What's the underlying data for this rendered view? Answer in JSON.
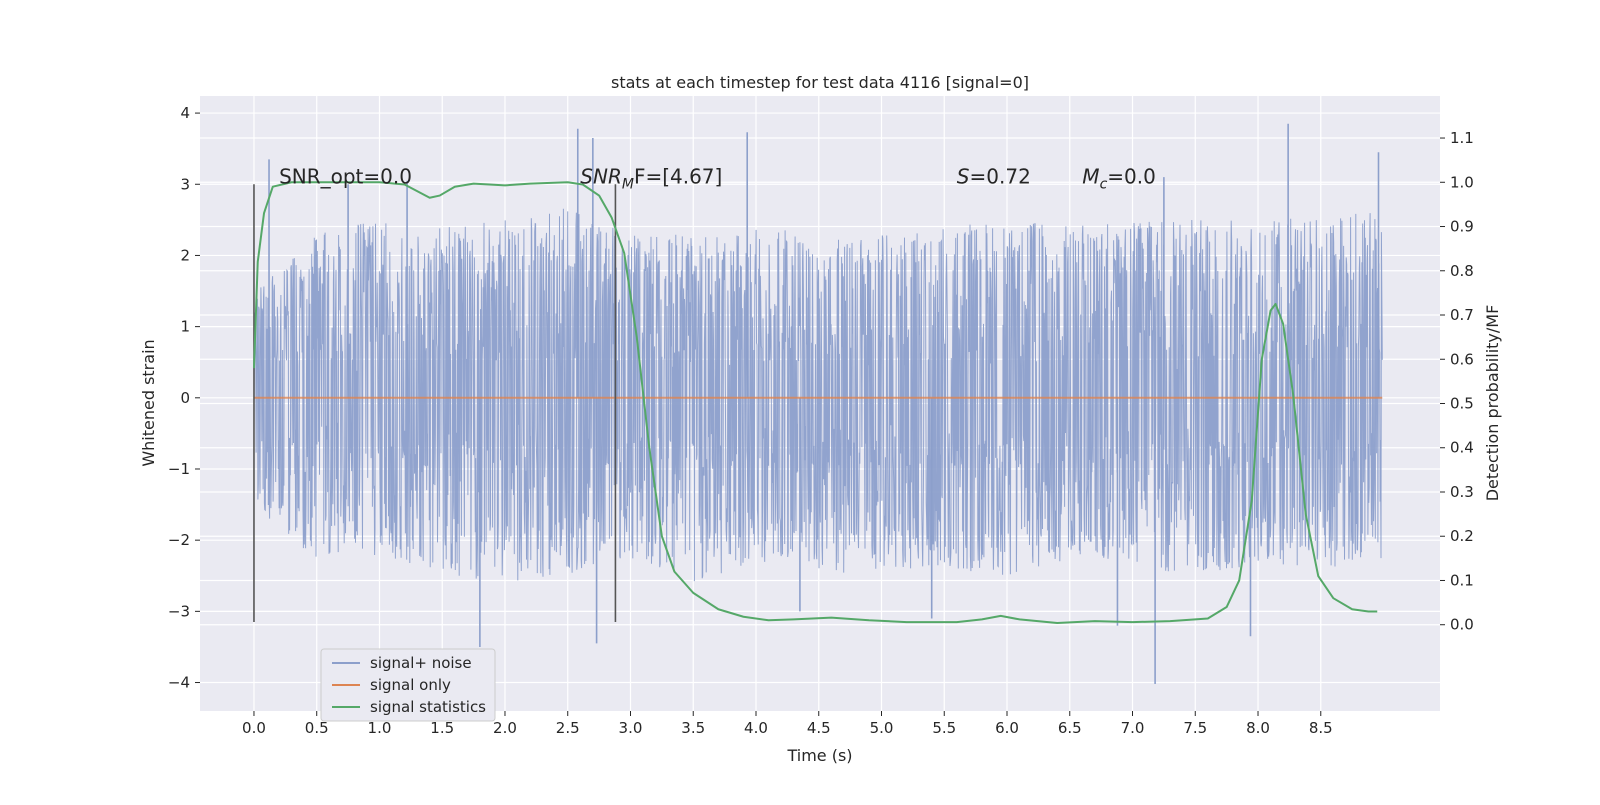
{
  "chart_data": {
    "type": "line",
    "title": "stats at each timestep for test data 4116 [signal=0]",
    "xlabel": "Time (s)",
    "ylabel": "Whitened strain",
    "y2label": "Detection probability/MF",
    "xlim": [
      -0.43,
      9.45
    ],
    "ylim": [
      -4.4,
      4.24
    ],
    "y2lim": [
      -0.195,
      1.195
    ],
    "x_ticks": [
      0.0,
      0.5,
      1.0,
      1.5,
      2.0,
      2.5,
      3.0,
      3.5,
      4.0,
      4.5,
      5.0,
      5.5,
      6.0,
      6.5,
      7.0,
      7.5,
      8.0,
      8.5
    ],
    "x_tick_labels": [
      "0.0",
      "0.5",
      "1.0",
      "1.5",
      "2.0",
      "2.5",
      "3.0",
      "3.5",
      "4.0",
      "4.5",
      "5.0",
      "5.5",
      "6.0",
      "6.5",
      "7.0",
      "7.5",
      "8.0",
      "8.5"
    ],
    "y_ticks": [
      -4,
      -3,
      -2,
      -1,
      0,
      1,
      2,
      3,
      4
    ],
    "y_tick_labels": [
      "−4",
      "−3",
      "−2",
      "−1",
      "0",
      "1",
      "2",
      "3",
      "4"
    ],
    "y2_ticks": [
      0.0,
      0.1,
      0.2,
      0.3,
      0.4,
      0.5,
      0.6,
      0.7,
      0.8,
      0.9,
      1.0,
      1.1
    ],
    "y2_tick_labels": [
      "0.0",
      "0.1",
      "0.2",
      "0.3",
      "0.4",
      "0.5",
      "0.6",
      "0.7",
      "0.8",
      "0.9",
      "1.0",
      "1.1"
    ],
    "grid": true,
    "legend_position": "lower-left",
    "series": [
      {
        "name": "signal+ noise",
        "axis": "left",
        "color": "#8c9fcb",
        "x_range": [
          0.0,
          8.99
        ],
        "envelope_upper": [
          [
            0.0,
            1.5
          ],
          [
            0.5,
            2.3
          ],
          [
            1.0,
            2.5
          ],
          [
            1.5,
            2.4
          ],
          [
            2.0,
            2.5
          ],
          [
            2.5,
            2.7
          ],
          [
            3.0,
            2.3
          ],
          [
            3.5,
            2.3
          ],
          [
            4.0,
            2.4
          ],
          [
            4.5,
            2.3
          ],
          [
            5.0,
            2.3
          ],
          [
            5.5,
            2.4
          ],
          [
            6.0,
            2.5
          ],
          [
            6.5,
            2.5
          ],
          [
            7.0,
            2.5
          ],
          [
            7.5,
            2.5
          ],
          [
            8.0,
            2.5
          ],
          [
            8.5,
            2.6
          ],
          [
            8.99,
            2.6
          ]
        ],
        "envelope_lower": [
          [
            0.0,
            -1.5
          ],
          [
            0.5,
            -2.3
          ],
          [
            1.0,
            -2.2
          ],
          [
            1.5,
            -2.5
          ],
          [
            2.0,
            -2.6
          ],
          [
            2.5,
            -2.5
          ],
          [
            3.0,
            -2.3
          ],
          [
            3.5,
            -2.6
          ],
          [
            4.0,
            -2.3
          ],
          [
            4.5,
            -2.5
          ],
          [
            5.0,
            -2.4
          ],
          [
            5.5,
            -2.4
          ],
          [
            6.0,
            -2.5
          ],
          [
            6.5,
            -2.3
          ],
          [
            7.0,
            -2.3
          ],
          [
            7.5,
            -2.6
          ],
          [
            8.0,
            -2.3
          ],
          [
            8.5,
            -2.4
          ],
          [
            8.99,
            -2.3
          ]
        ],
        "peaks": [
          [
            0.12,
            3.35
          ],
          [
            0.75,
            3.0
          ],
          [
            1.22,
            3.05
          ],
          [
            1.8,
            -3.5
          ],
          [
            2.58,
            3.78
          ],
          [
            2.7,
            3.65
          ],
          [
            2.73,
            -3.45
          ],
          [
            3.93,
            3.73
          ],
          [
            4.35,
            -3.0
          ],
          [
            5.4,
            -3.1
          ],
          [
            6.88,
            -3.2
          ],
          [
            7.18,
            -4.02
          ],
          [
            7.25,
            3.1
          ],
          [
            7.94,
            -3.35
          ],
          [
            8.24,
            3.85
          ],
          [
            8.96,
            3.45
          ]
        ]
      },
      {
        "name": "signal only",
        "axis": "left",
        "color": "#dd8452",
        "points": [
          [
            0.0,
            0.0
          ],
          [
            8.99,
            0.0
          ]
        ]
      },
      {
        "name": "signal statistics",
        "axis": "right",
        "color": "#55a868",
        "points": [
          [
            0.0,
            0.58
          ],
          [
            0.03,
            0.82
          ],
          [
            0.08,
            0.93
          ],
          [
            0.15,
            0.99
          ],
          [
            0.3,
            1.0
          ],
          [
            0.6,
            1.0
          ],
          [
            1.0,
            1.0
          ],
          [
            1.2,
            0.995
          ],
          [
            1.3,
            0.98
          ],
          [
            1.4,
            0.965
          ],
          [
            1.48,
            0.97
          ],
          [
            1.6,
            0.99
          ],
          [
            1.75,
            0.997
          ],
          [
            2.0,
            0.993
          ],
          [
            2.2,
            0.997
          ],
          [
            2.5,
            1.0
          ],
          [
            2.62,
            0.995
          ],
          [
            2.75,
            0.97
          ],
          [
            2.85,
            0.92
          ],
          [
            2.95,
            0.84
          ],
          [
            3.05,
            0.65
          ],
          [
            3.15,
            0.4
          ],
          [
            3.25,
            0.2
          ],
          [
            3.35,
            0.12
          ],
          [
            3.5,
            0.072
          ],
          [
            3.7,
            0.035
          ],
          [
            3.9,
            0.018
          ],
          [
            4.1,
            0.01
          ],
          [
            4.3,
            0.012
          ],
          [
            4.6,
            0.016
          ],
          [
            4.9,
            0.01
          ],
          [
            5.2,
            0.006
          ],
          [
            5.6,
            0.006
          ],
          [
            5.8,
            0.012
          ],
          [
            5.95,
            0.02
          ],
          [
            6.1,
            0.012
          ],
          [
            6.4,
            0.004
          ],
          [
            6.7,
            0.008
          ],
          [
            7.0,
            0.006
          ],
          [
            7.3,
            0.008
          ],
          [
            7.6,
            0.014
          ],
          [
            7.75,
            0.04
          ],
          [
            7.85,
            0.1
          ],
          [
            7.95,
            0.28
          ],
          [
            8.03,
            0.6
          ],
          [
            8.1,
            0.71
          ],
          [
            8.14,
            0.725
          ],
          [
            8.2,
            0.68
          ],
          [
            8.28,
            0.52
          ],
          [
            8.38,
            0.25
          ],
          [
            8.48,
            0.11
          ],
          [
            8.6,
            0.06
          ],
          [
            8.75,
            0.035
          ],
          [
            8.88,
            0.03
          ],
          [
            8.95,
            0.03
          ]
        ]
      }
    ],
    "vertical_markers": [
      {
        "x": 0.0,
        "y_range": [
          -3.15,
          3.0
        ],
        "color": "#555555"
      },
      {
        "x": 2.88,
        "y_range": [
          -3.15,
          3.0
        ],
        "color": "#555555"
      }
    ],
    "annotations": [
      {
        "x": 0.2,
        "y": 3.0,
        "pre": "SNR_opt=0.0",
        "sub": "",
        "post": ""
      },
      {
        "x": 2.6,
        "y": 3.0,
        "pre": "SNR",
        "sub": "M",
        "post": "F=[4.67]"
      },
      {
        "x": 5.6,
        "y": 3.0,
        "pre": "S",
        "sub": "",
        "post": "=0.72"
      },
      {
        "x": 6.6,
        "y": 3.0,
        "pre": "M",
        "sub": "c",
        "post": "=0.0"
      }
    ]
  }
}
